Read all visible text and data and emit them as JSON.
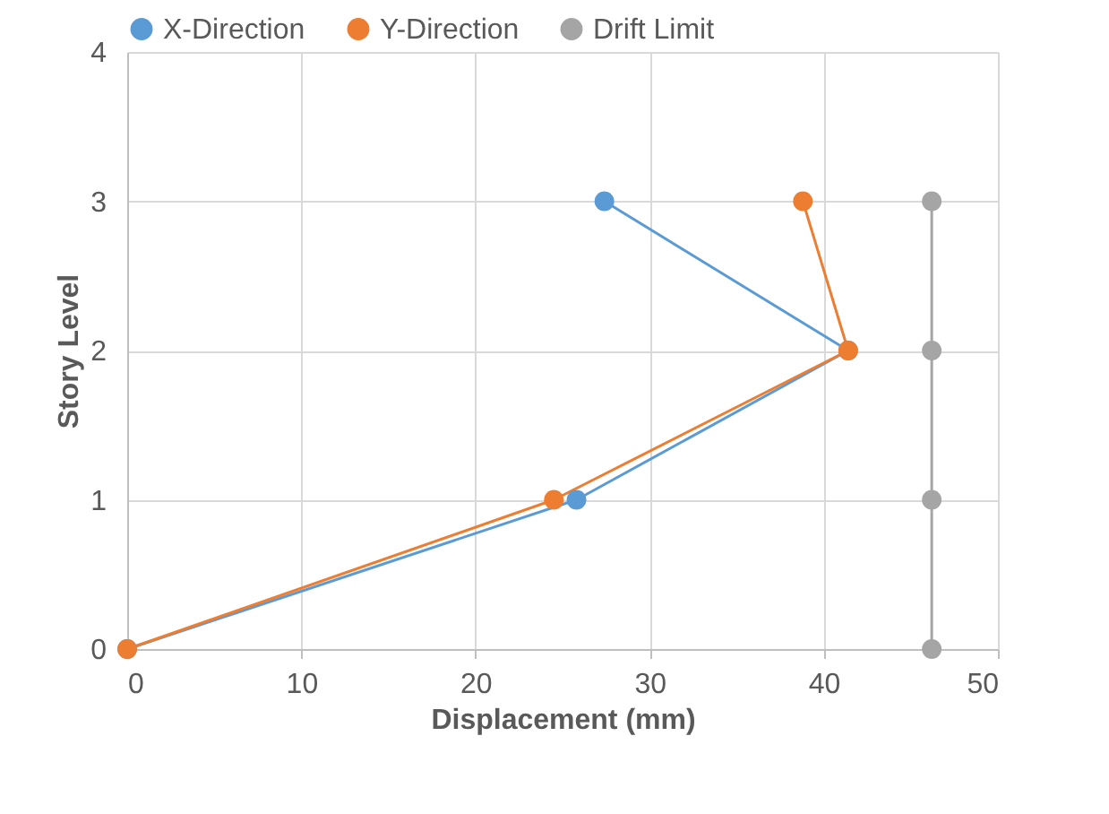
{
  "chart_data": {
    "type": "line",
    "xlabel": "Displacement (mm)",
    "ylabel": "Story Level",
    "xlim": [
      0,
      50
    ],
    "xticks": [
      0,
      10,
      20,
      30,
      40,
      50
    ],
    "ylim": [
      0,
      4
    ],
    "yticks": [
      0,
      1,
      2,
      3,
      4
    ],
    "grid": true,
    "legend": "top",
    "marker": "circle",
    "series": [
      {
        "name": "X-Direction",
        "color": "#5b9bd5",
        "x": [
          0,
          25.8,
          41.4,
          27.4
        ],
        "values": [
          0,
          1,
          2,
          3
        ]
      },
      {
        "name": "Y-Direction",
        "color": "#ed7d31",
        "x": [
          0,
          24.5,
          41.4,
          38.8
        ],
        "values": [
          0,
          1,
          2,
          3
        ]
      },
      {
        "name": "Drift Limit",
        "color": "#a5a5a5",
        "x": [
          46.2,
          46.2,
          46.2,
          46.2
        ],
        "values": [
          0,
          1,
          2,
          3
        ]
      }
    ]
  }
}
